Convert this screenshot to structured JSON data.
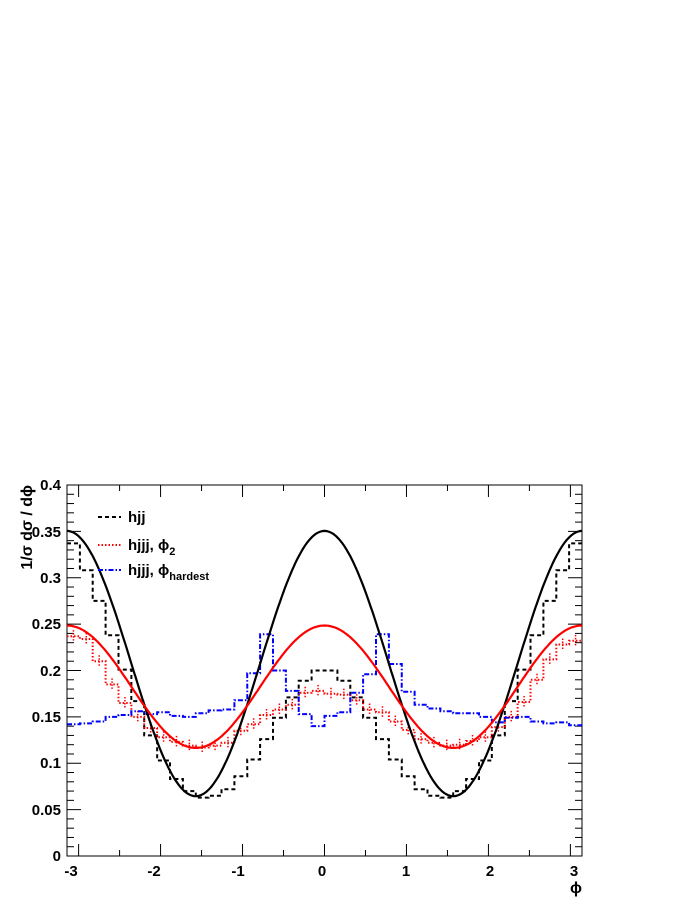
{
  "chart_data": {
    "type": "line",
    "xlabel": "ϕ",
    "ylabel": "1/σ dσ / dϕ",
    "xlim": [
      -3.14159,
      3.14159
    ],
    "ylim": [
      0,
      0.4
    ],
    "xticks": [
      "-3",
      "-2",
      "-1",
      "0",
      "1",
      "2",
      "3"
    ],
    "yticks": [
      "0",
      "0.05",
      "0.1",
      "0.15",
      "0.2",
      "0.25",
      "0.3",
      "0.35",
      "0.4"
    ],
    "legend_position": "top-left",
    "legend": [
      {
        "base": "hjj",
        "sub": ""
      },
      {
        "base": "hjjj, ϕ",
        "sub": "2"
      },
      {
        "base": "hjjj, ϕ",
        "sub": "hardest"
      }
    ],
    "series": [
      {
        "style": "dashed-histogram",
        "color": "#000000",
        "x_centers": [
          -3.063,
          -2.906,
          -2.749,
          -2.592,
          -2.435,
          -2.278,
          -2.121,
          -1.963,
          -1.806,
          -1.649,
          -1.492,
          -1.335,
          -1.178,
          -1.021,
          -0.864,
          -0.707,
          -0.55,
          -0.393,
          -0.236,
          -0.079,
          0.079,
          0.236,
          0.393,
          0.55,
          0.707,
          0.864,
          1.021,
          1.178,
          1.335,
          1.492,
          1.649,
          1.806,
          1.963,
          2.121,
          2.278,
          2.435,
          2.592,
          2.749,
          2.906,
          3.063
        ],
        "values": [
          0.337,
          0.308,
          0.275,
          0.238,
          0.201,
          0.167,
          0.13,
          0.103,
          0.083,
          0.07,
          0.063,
          0.065,
          0.072,
          0.086,
          0.104,
          0.126,
          0.149,
          0.171,
          0.189,
          0.2,
          0.2,
          0.189,
          0.171,
          0.149,
          0.126,
          0.104,
          0.086,
          0.072,
          0.065,
          0.063,
          0.07,
          0.083,
          0.103,
          0.13,
          0.167,
          0.201,
          0.238,
          0.275,
          0.308,
          0.337
        ]
      },
      {
        "style": "dotted-histogram",
        "color": "#ff0000",
        "x_centers": [
          -3.063,
          -2.906,
          -2.749,
          -2.592,
          -2.435,
          -2.278,
          -2.121,
          -1.963,
          -1.806,
          -1.649,
          -1.492,
          -1.335,
          -1.178,
          -1.021,
          -0.864,
          -0.707,
          -0.55,
          -0.393,
          -0.236,
          -0.079,
          0.079,
          0.236,
          0.393,
          0.55,
          0.707,
          0.864,
          1.021,
          1.178,
          1.335,
          1.492,
          1.649,
          1.806,
          1.963,
          2.121,
          2.278,
          2.435,
          2.592,
          2.749,
          2.906,
          3.063
        ],
        "values": [
          0.237,
          0.234,
          0.21,
          0.185,
          0.165,
          0.15,
          0.138,
          0.128,
          0.123,
          0.119,
          0.117,
          0.119,
          0.122,
          0.135,
          0.142,
          0.152,
          0.158,
          0.163,
          0.176,
          0.178,
          0.175,
          0.174,
          0.168,
          0.158,
          0.155,
          0.145,
          0.136,
          0.126,
          0.122,
          0.119,
          0.12,
          0.124,
          0.128,
          0.139,
          0.15,
          0.166,
          0.19,
          0.212,
          0.228,
          0.232
        ]
      },
      {
        "style": "dash-dot-histogram",
        "color": "#0000ff",
        "x_centers": [
          -3.063,
          -2.906,
          -2.749,
          -2.592,
          -2.435,
          -2.278,
          -2.121,
          -1.963,
          -1.806,
          -1.649,
          -1.492,
          -1.335,
          -1.178,
          -1.021,
          -0.864,
          -0.707,
          -0.55,
          -0.393,
          -0.236,
          -0.079,
          0.079,
          0.236,
          0.393,
          0.55,
          0.707,
          0.864,
          1.021,
          1.178,
          1.335,
          1.492,
          1.649,
          1.806,
          1.963,
          2.121,
          2.278,
          2.435,
          2.592,
          2.749,
          2.906,
          3.063
        ],
        "values": [
          0.142,
          0.143,
          0.145,
          0.15,
          0.152,
          0.156,
          0.153,
          0.155,
          0.151,
          0.15,
          0.154,
          0.157,
          0.158,
          0.168,
          0.197,
          0.239,
          0.2,
          0.178,
          0.153,
          0.14,
          0.151,
          0.155,
          0.176,
          0.196,
          0.239,
          0.207,
          0.177,
          0.163,
          0.159,
          0.156,
          0.154,
          0.154,
          0.15,
          0.144,
          0.149,
          0.15,
          0.145,
          0.143,
          0.144,
          0.141
        ]
      },
      {
        "style": "solid-curve",
        "color": "#000000",
        "fit": {
          "type": "a + b cos(2ϕ)",
          "a": 0.2075,
          "b": 0.143
        }
      },
      {
        "style": "solid-curve",
        "color": "#ff0000",
        "fit": {
          "type": "a + b cos(2ϕ)",
          "a": 0.1825,
          "b": 0.066
        }
      }
    ]
  }
}
